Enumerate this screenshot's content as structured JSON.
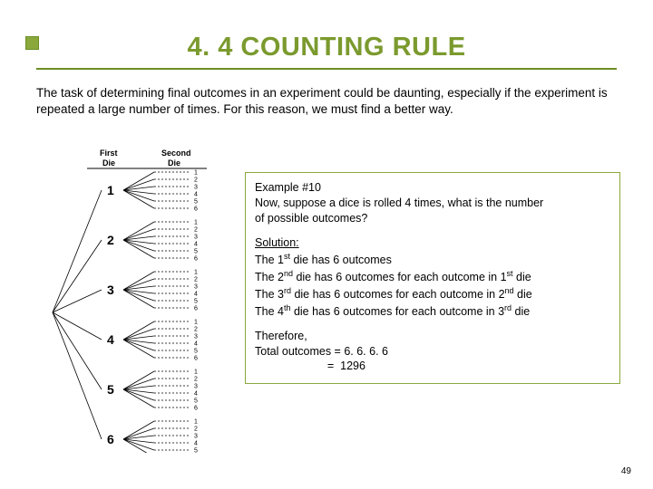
{
  "title": "4. 4 COUNTING RULE",
  "intro": "The task of determining final outcomes in an experiment could be daunting, especially if the experiment is repeated a large number of times.  For this reason, we must find a better way.",
  "tree": {
    "header_first": "First",
    "header_die": "Die",
    "header_second": "Second",
    "first_die_labels": [
      "1",
      "2",
      "3",
      "4",
      "5",
      "6"
    ],
    "second_die_labels": [
      "1",
      "2",
      "3",
      "4",
      "5",
      "6"
    ]
  },
  "example": {
    "heading": "Example #10",
    "prompt_l1": "Now, suppose a dice is rolled 4 times, what is the number",
    "prompt_l2": "of possible outcomes?",
    "solution_label": "Solution:",
    "line1_a": "The 1",
    "line1_b": " die has 6 outcomes",
    "line2_a": "The 2",
    "line2_b": " die has 6 outcomes for each outcome in 1",
    "line2_c": " die",
    "line3_a": "The 3",
    "line3_b": " die has 6 outcomes for each outcome in 2",
    "line3_c": " die",
    "line4_a": "The 4",
    "line4_b": " die has 6 outcomes for each outcome in 3",
    "line4_c": " die",
    "ord_st": "st",
    "ord_nd": "nd",
    "ord_rd": "rd",
    "ord_th": "th",
    "therefore": "Therefore,",
    "total_line": "Total outcomes = 6. 6. 6. 6",
    "total_eq": "                       =  1296"
  },
  "page_number": "49",
  "colors": {
    "accent": "#8aa83c",
    "title": "#7b9a2e",
    "rule": "#6b8e23"
  }
}
